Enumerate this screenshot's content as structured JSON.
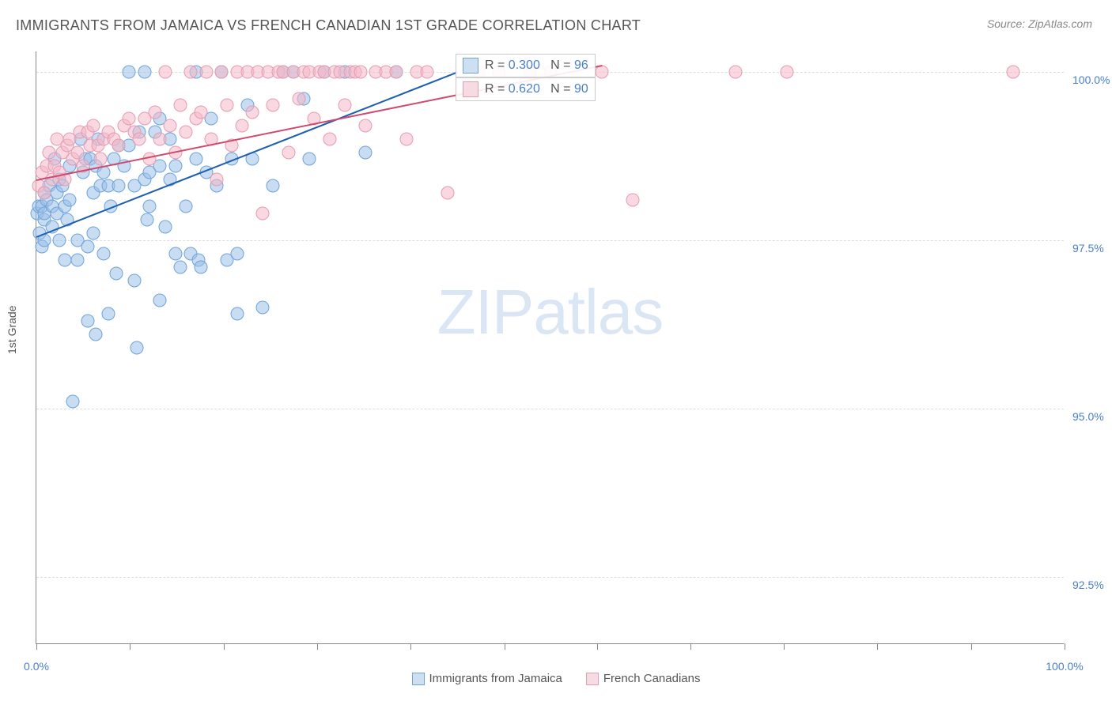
{
  "title": "IMMIGRANTS FROM JAMAICA VS FRENCH CANADIAN 1ST GRADE CORRELATION CHART",
  "source": "Source: ZipAtlas.com",
  "ylabel": "1st Grade",
  "watermark": "ZIPatlas",
  "chart": {
    "type": "scatter",
    "background_color": "#ffffff",
    "grid_color": "#dddddd",
    "axis_color": "#888888",
    "xlim": [
      0,
      100
    ],
    "ylim": [
      91.5,
      100.3
    ],
    "x_tick_positions": [
      0,
      9.1,
      18.2,
      27.3,
      36.4,
      45.5,
      54.5,
      63.6,
      72.7,
      81.8,
      90.9,
      100
    ],
    "x_tick_labels": {
      "0": "0.0%",
      "100": "100.0%"
    },
    "y_gridlines": [
      92.5,
      95.0,
      97.5,
      100.0
    ],
    "y_tick_labels": [
      "92.5%",
      "95.0%",
      "97.5%",
      "100.0%"
    ]
  },
  "series": [
    {
      "name": "Immigrants from Jamaica",
      "fill_color": "rgba(155,192,232,0.55)",
      "stroke_color": "#6ea3da",
      "trend_color": "#1c5fb0",
      "legend_swatch": {
        "fill": "#cde0f2",
        "border": "#6ea3da"
      },
      "stats": {
        "R": "0.300",
        "N": "96"
      },
      "trend": {
        "x1": 0,
        "y1": 97.55,
        "x2": 41,
        "y2": 100.0
      },
      "points": [
        {
          "x": 0.1,
          "y": 97.9
        },
        {
          "x": 0.2,
          "y": 98.0
        },
        {
          "x": 0.3,
          "y": 97.6
        },
        {
          "x": 0.5,
          "y": 97.4
        },
        {
          "x": 0.5,
          "y": 98.0
        },
        {
          "x": 0.8,
          "y": 98.2
        },
        {
          "x": 0.8,
          "y": 97.8
        },
        {
          "x": 0.8,
          "y": 97.5
        },
        {
          "x": 0.8,
          "y": 97.9
        },
        {
          "x": 1.0,
          "y": 98.1
        },
        {
          "x": 1.2,
          "y": 98.3
        },
        {
          "x": 1.5,
          "y": 98.0
        },
        {
          "x": 1.5,
          "y": 97.7
        },
        {
          "x": 1.8,
          "y": 98.7
        },
        {
          "x": 2.0,
          "y": 98.2
        },
        {
          "x": 2.0,
          "y": 97.9
        },
        {
          "x": 2.2,
          "y": 98.4
        },
        {
          "x": 2.2,
          "y": 97.5
        },
        {
          "x": 2.5,
          "y": 98.3
        },
        {
          "x": 2.8,
          "y": 98.0
        },
        {
          "x": 2.8,
          "y": 97.2
        },
        {
          "x": 3.0,
          "y": 97.8
        },
        {
          "x": 3.2,
          "y": 98.6
        },
        {
          "x": 3.2,
          "y": 98.1
        },
        {
          "x": 3.5,
          "y": 95.1
        },
        {
          "x": 4.0,
          "y": 97.2
        },
        {
          "x": 4.0,
          "y": 97.5
        },
        {
          "x": 4.3,
          "y": 99.0
        },
        {
          "x": 4.5,
          "y": 98.5
        },
        {
          "x": 4.8,
          "y": 98.7
        },
        {
          "x": 5.0,
          "y": 97.4
        },
        {
          "x": 5.0,
          "y": 96.3
        },
        {
          "x": 5.2,
          "y": 98.7
        },
        {
          "x": 5.5,
          "y": 98.2
        },
        {
          "x": 5.5,
          "y": 97.6
        },
        {
          "x": 5.8,
          "y": 98.6
        },
        {
          "x": 5.8,
          "y": 96.1
        },
        {
          "x": 6.0,
          "y": 99.0
        },
        {
          "x": 6.2,
          "y": 98.3
        },
        {
          "x": 6.5,
          "y": 98.5
        },
        {
          "x": 6.5,
          "y": 97.3
        },
        {
          "x": 7.0,
          "y": 98.3
        },
        {
          "x": 7.0,
          "y": 96.4
        },
        {
          "x": 7.2,
          "y": 98.0
        },
        {
          "x": 7.5,
          "y": 98.7
        },
        {
          "x": 7.8,
          "y": 97.0
        },
        {
          "x": 8.0,
          "y": 98.9
        },
        {
          "x": 8.0,
          "y": 98.3
        },
        {
          "x": 8.5,
          "y": 98.6
        },
        {
          "x": 9.0,
          "y": 100.0
        },
        {
          "x": 9.0,
          "y": 98.9
        },
        {
          "x": 9.5,
          "y": 98.3
        },
        {
          "x": 9.5,
          "y": 96.9
        },
        {
          "x": 9.8,
          "y": 95.9
        },
        {
          "x": 10.0,
          "y": 99.1
        },
        {
          "x": 10.5,
          "y": 100.0
        },
        {
          "x": 10.5,
          "y": 98.4
        },
        {
          "x": 10.8,
          "y": 97.8
        },
        {
          "x": 11.0,
          "y": 98.0
        },
        {
          "x": 11.0,
          "y": 98.5
        },
        {
          "x": 11.5,
          "y": 99.1
        },
        {
          "x": 12.0,
          "y": 99.3
        },
        {
          "x": 12.0,
          "y": 98.6
        },
        {
          "x": 12.0,
          "y": 96.6
        },
        {
          "x": 12.5,
          "y": 97.7
        },
        {
          "x": 13.0,
          "y": 98.4
        },
        {
          "x": 13.0,
          "y": 99.0
        },
        {
          "x": 13.5,
          "y": 97.3
        },
        {
          "x": 13.5,
          "y": 98.6
        },
        {
          "x": 14.0,
          "y": 97.1
        },
        {
          "x": 14.5,
          "y": 98.0
        },
        {
          "x": 15.0,
          "y": 97.3
        },
        {
          "x": 15.5,
          "y": 100.0
        },
        {
          "x": 15.5,
          "y": 98.7
        },
        {
          "x": 15.8,
          "y": 97.2
        },
        {
          "x": 16.0,
          "y": 97.1
        },
        {
          "x": 16.5,
          "y": 98.5
        },
        {
          "x": 17.0,
          "y": 99.3
        },
        {
          "x": 17.5,
          "y": 98.3
        },
        {
          "x": 18.0,
          "y": 100.0
        },
        {
          "x": 18.5,
          "y": 97.2
        },
        {
          "x": 19.0,
          "y": 98.7
        },
        {
          "x": 19.5,
          "y": 97.3
        },
        {
          "x": 19.5,
          "y": 96.4
        },
        {
          "x": 20.5,
          "y": 99.5
        },
        {
          "x": 21.0,
          "y": 98.7
        },
        {
          "x": 22.0,
          "y": 96.5
        },
        {
          "x": 23.0,
          "y": 98.3
        },
        {
          "x": 24.0,
          "y": 100.0
        },
        {
          "x": 25.0,
          "y": 100.0
        },
        {
          "x": 26.0,
          "y": 99.6
        },
        {
          "x": 26.5,
          "y": 98.7
        },
        {
          "x": 28.0,
          "y": 100.0
        },
        {
          "x": 30.0,
          "y": 100.0
        },
        {
          "x": 32.0,
          "y": 98.8
        },
        {
          "x": 35.0,
          "y": 100.0
        }
      ]
    },
    {
      "name": "French Canadians",
      "fill_color": "rgba(244,184,200,0.55)",
      "stroke_color": "#e59bb0",
      "trend_color": "#d0496e",
      "legend_swatch": {
        "fill": "#f7dbe2",
        "border": "#e59bb0"
      },
      "stats": {
        "R": "0.620",
        "N": "90"
      },
      "trend": {
        "x1": 0,
        "y1": 98.4,
        "x2": 55,
        "y2": 100.1
      },
      "points": [
        {
          "x": 0.2,
          "y": 98.3
        },
        {
          "x": 0.5,
          "y": 98.5
        },
        {
          "x": 0.8,
          "y": 98.2
        },
        {
          "x": 1.0,
          "y": 98.6
        },
        {
          "x": 1.2,
          "y": 98.8
        },
        {
          "x": 1.5,
          "y": 98.4
        },
        {
          "x": 1.8,
          "y": 98.6
        },
        {
          "x": 2.0,
          "y": 99.0
        },
        {
          "x": 2.2,
          "y": 98.5
        },
        {
          "x": 2.5,
          "y": 98.8
        },
        {
          "x": 2.8,
          "y": 98.4
        },
        {
          "x": 3.0,
          "y": 98.9
        },
        {
          "x": 3.2,
          "y": 99.0
        },
        {
          "x": 3.5,
          "y": 98.7
        },
        {
          "x": 4.0,
          "y": 98.8
        },
        {
          "x": 4.2,
          "y": 99.1
        },
        {
          "x": 4.5,
          "y": 98.6
        },
        {
          "x": 5.0,
          "y": 99.1
        },
        {
          "x": 5.2,
          "y": 98.9
        },
        {
          "x": 5.5,
          "y": 99.2
        },
        {
          "x": 6.0,
          "y": 98.9
        },
        {
          "x": 6.2,
          "y": 98.7
        },
        {
          "x": 6.5,
          "y": 99.0
        },
        {
          "x": 7.0,
          "y": 99.1
        },
        {
          "x": 7.5,
          "y": 99.0
        },
        {
          "x": 8.0,
          "y": 98.9
        },
        {
          "x": 8.5,
          "y": 99.2
        },
        {
          "x": 9.0,
          "y": 99.3
        },
        {
          "x": 9.5,
          "y": 99.1
        },
        {
          "x": 10.0,
          "y": 99.0
        },
        {
          "x": 10.5,
          "y": 99.3
        },
        {
          "x": 11.0,
          "y": 98.7
        },
        {
          "x": 11.5,
          "y": 99.4
        },
        {
          "x": 12.0,
          "y": 99.0
        },
        {
          "x": 12.5,
          "y": 100.0
        },
        {
          "x": 13.0,
          "y": 99.2
        },
        {
          "x": 13.5,
          "y": 98.8
        },
        {
          "x": 14.0,
          "y": 99.5
        },
        {
          "x": 14.5,
          "y": 99.1
        },
        {
          "x": 15.0,
          "y": 100.0
        },
        {
          "x": 15.5,
          "y": 99.3
        },
        {
          "x": 16.0,
          "y": 99.4
        },
        {
          "x": 16.5,
          "y": 100.0
        },
        {
          "x": 17.0,
          "y": 99.0
        },
        {
          "x": 17.5,
          "y": 98.4
        },
        {
          "x": 18.0,
          "y": 100.0
        },
        {
          "x": 18.5,
          "y": 99.5
        },
        {
          "x": 19.0,
          "y": 98.9
        },
        {
          "x": 19.5,
          "y": 100.0
        },
        {
          "x": 20.0,
          "y": 99.2
        },
        {
          "x": 20.5,
          "y": 100.0
        },
        {
          "x": 21.0,
          "y": 99.4
        },
        {
          "x": 21.5,
          "y": 100.0
        },
        {
          "x": 22.0,
          "y": 97.9
        },
        {
          "x": 22.5,
          "y": 100.0
        },
        {
          "x": 23.0,
          "y": 99.5
        },
        {
          "x": 23.5,
          "y": 100.0
        },
        {
          "x": 24.0,
          "y": 100.0
        },
        {
          "x": 24.5,
          "y": 98.8
        },
        {
          "x": 25.0,
          "y": 100.0
        },
        {
          "x": 25.5,
          "y": 99.6
        },
        {
          "x": 26.0,
          "y": 100.0
        },
        {
          "x": 26.5,
          "y": 100.0
        },
        {
          "x": 27.0,
          "y": 99.3
        },
        {
          "x": 27.5,
          "y": 100.0
        },
        {
          "x": 28.0,
          "y": 100.0
        },
        {
          "x": 28.5,
          "y": 99.0
        },
        {
          "x": 29.0,
          "y": 100.0
        },
        {
          "x": 29.5,
          "y": 100.0
        },
        {
          "x": 30.0,
          "y": 99.5
        },
        {
          "x": 30.5,
          "y": 100.0
        },
        {
          "x": 31.0,
          "y": 100.0
        },
        {
          "x": 31.5,
          "y": 100.0
        },
        {
          "x": 32.0,
          "y": 99.2
        },
        {
          "x": 33.0,
          "y": 100.0
        },
        {
          "x": 34.0,
          "y": 100.0
        },
        {
          "x": 35.0,
          "y": 100.0
        },
        {
          "x": 36.0,
          "y": 99.0
        },
        {
          "x": 37.0,
          "y": 100.0
        },
        {
          "x": 38.0,
          "y": 100.0
        },
        {
          "x": 40.0,
          "y": 98.2
        },
        {
          "x": 43.0,
          "y": 100.0
        },
        {
          "x": 45.0,
          "y": 100.0
        },
        {
          "x": 48.0,
          "y": 100.0
        },
        {
          "x": 50.0,
          "y": 100.0
        },
        {
          "x": 55.0,
          "y": 100.0
        },
        {
          "x": 58.0,
          "y": 98.1
        },
        {
          "x": 68.0,
          "y": 100.0
        },
        {
          "x": 73.0,
          "y": 100.0
        },
        {
          "x": 95.0,
          "y": 100.0
        }
      ]
    }
  ]
}
